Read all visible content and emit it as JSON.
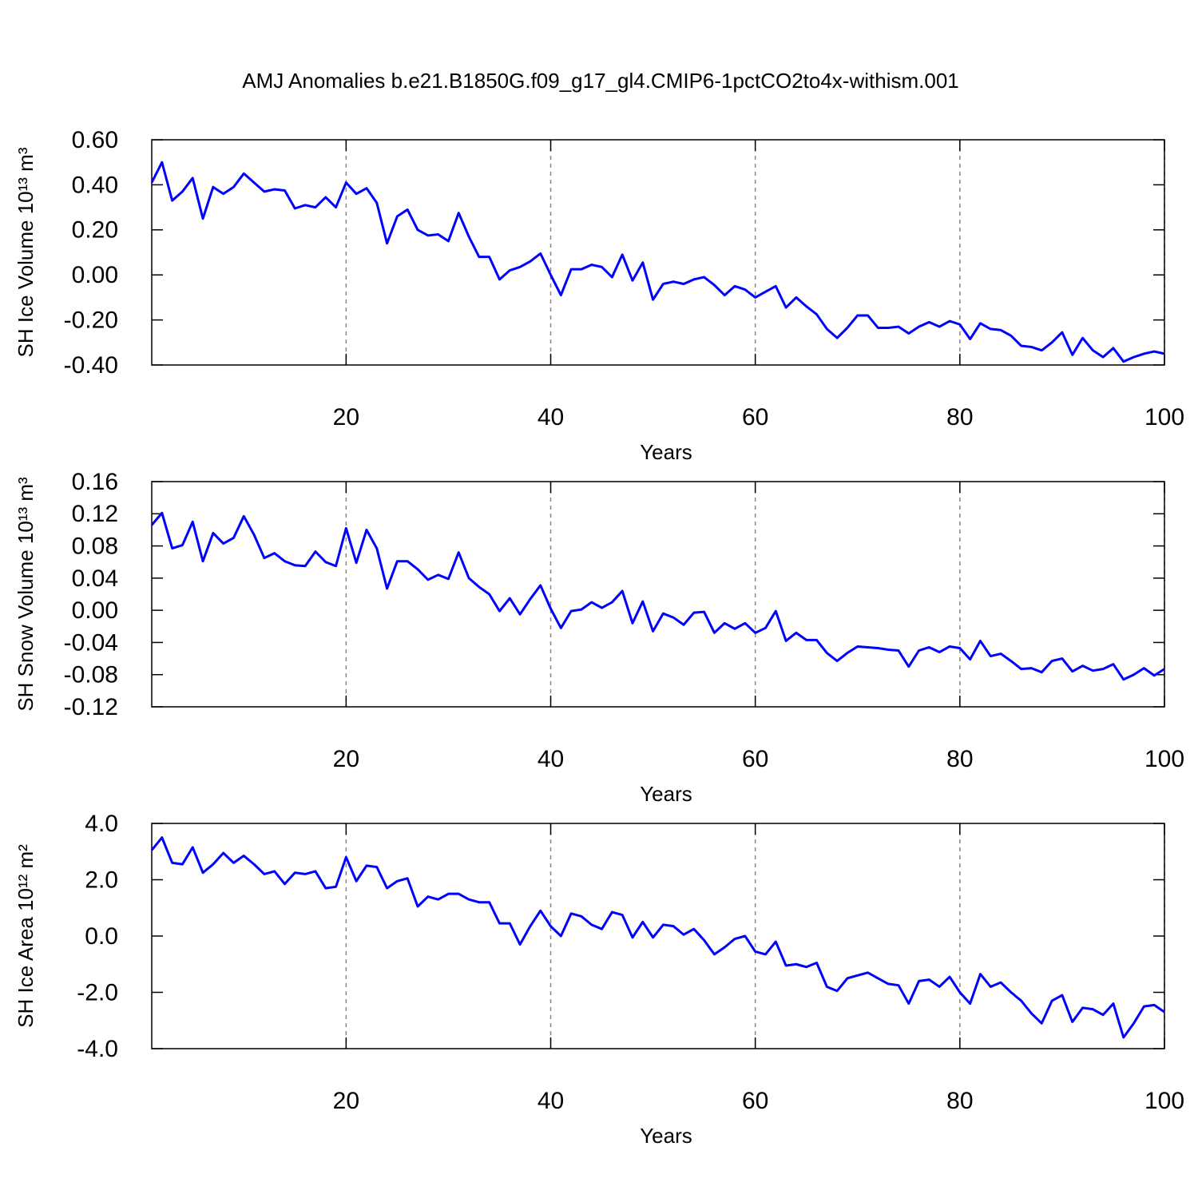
{
  "chart_data": [
    {
      "type": "line",
      "title": "AMJ Anomalies b.e21.B1850G.f09_g17_gl4.CMIP6-1pctCO2to4x-withism.001",
      "xlabel": "Years",
      "ylabel": "SH Ice Volume 10¹³ m³",
      "x": [
        1,
        2,
        3,
        4,
        5,
        6,
        7,
        8,
        9,
        10,
        11,
        12,
        13,
        14,
        15,
        16,
        17,
        18,
        19,
        20,
        21,
        22,
        23,
        24,
        25,
        26,
        27,
        28,
        29,
        30,
        31,
        32,
        33,
        34,
        35,
        36,
        37,
        38,
        39,
        40,
        41,
        42,
        43,
        44,
        45,
        46,
        47,
        48,
        49,
        50,
        51,
        52,
        53,
        54,
        55,
        56,
        57,
        58,
        59,
        60,
        61,
        62,
        63,
        64,
        65,
        66,
        67,
        68,
        69,
        70,
        71,
        72,
        73,
        74,
        75,
        76,
        77,
        78,
        79,
        80,
        81,
        82,
        83,
        84,
        85,
        86,
        87,
        88,
        89,
        90,
        91,
        92,
        93,
        94,
        95,
        96,
        97,
        98,
        99,
        100
      ],
      "series": [
        {
          "color": "#0000ff",
          "values": [
            0.41,
            0.5,
            0.33,
            0.37,
            0.43,
            0.25,
            0.39,
            0.36,
            0.39,
            0.45,
            0.41,
            0.37,
            0.38,
            0.375,
            0.295,
            0.31,
            0.3,
            0.345,
            0.3,
            0.41,
            0.36,
            0.385,
            0.32,
            0.14,
            0.26,
            0.29,
            0.2,
            0.175,
            0.18,
            0.15,
            0.275,
            0.17,
            0.08,
            0.08,
            -0.02,
            0.02,
            0.035,
            0.06,
            0.095,
            0.0,
            -0.09,
            0.025,
            0.025,
            0.045,
            0.035,
            -0.01,
            0.09,
            -0.025,
            0.055,
            -0.11,
            -0.04,
            -0.03,
            -0.04,
            -0.02,
            -0.01,
            -0.045,
            -0.09,
            -0.05,
            -0.065,
            -0.1,
            -0.075,
            -0.05,
            -0.145,
            -0.1,
            -0.14,
            -0.175,
            -0.24,
            -0.28,
            -0.235,
            -0.18,
            -0.18,
            -0.235,
            -0.235,
            -0.23,
            -0.26,
            -0.23,
            -0.21,
            -0.23,
            -0.205,
            -0.22,
            -0.285,
            -0.215,
            -0.24,
            -0.245,
            -0.27,
            -0.315,
            -0.32,
            -0.335,
            -0.3,
            -0.255,
            -0.355,
            -0.28,
            -0.335,
            -0.365,
            -0.325,
            -0.385,
            -0.365,
            -0.35,
            -0.34,
            -0.35
          ]
        }
      ],
      "xlim": [
        1,
        100
      ],
      "xticks": [
        20,
        40,
        60,
        80,
        100
      ],
      "ylim": [
        -0.4,
        0.6
      ],
      "yticks": [
        {
          "value": -0.4,
          "label": "-0.40"
        },
        {
          "value": -0.2,
          "label": "-0.20"
        },
        {
          "value": 0,
          "label": "0.00"
        },
        {
          "value": 0.2,
          "label": "0.20"
        },
        {
          "value": 0.4,
          "label": "0.40"
        },
        {
          "value": 0.6,
          "label": "0.60"
        }
      ],
      "grid": "x-dashed"
    },
    {
      "type": "line",
      "xlabel": "Years",
      "ylabel": "SH Snow Volume 10¹³ m³",
      "x": [
        1,
        2,
        3,
        4,
        5,
        6,
        7,
        8,
        9,
        10,
        11,
        12,
        13,
        14,
        15,
        16,
        17,
        18,
        19,
        20,
        21,
        22,
        23,
        24,
        25,
        26,
        27,
        28,
        29,
        30,
        31,
        32,
        33,
        34,
        35,
        36,
        37,
        38,
        39,
        40,
        41,
        42,
        43,
        44,
        45,
        46,
        47,
        48,
        49,
        50,
        51,
        52,
        53,
        54,
        55,
        56,
        57,
        58,
        59,
        60,
        61,
        62,
        63,
        64,
        65,
        66,
        67,
        68,
        69,
        70,
        71,
        72,
        73,
        74,
        75,
        76,
        77,
        78,
        79,
        80,
        81,
        82,
        83,
        84,
        85,
        86,
        87,
        88,
        89,
        90,
        91,
        92,
        93,
        94,
        95,
        96,
        97,
        98,
        99,
        100
      ],
      "series": [
        {
          "color": "#0000ff",
          "values": [
            0.106,
            0.121,
            0.077,
            0.081,
            0.11,
            0.061,
            0.096,
            0.083,
            0.09,
            0.117,
            0.094,
            0.065,
            0.071,
            0.061,
            0.056,
            0.055,
            0.073,
            0.06,
            0.055,
            0.102,
            0.059,
            0.1,
            0.077,
            0.027,
            0.061,
            0.061,
            0.051,
            0.038,
            0.044,
            0.039,
            0.072,
            0.04,
            0.029,
            0.02,
            -0.001,
            0.015,
            -0.005,
            0.014,
            0.031,
            0.002,
            -0.022,
            -0.001,
            0.001,
            0.01,
            0.003,
            0.01,
            0.024,
            -0.016,
            0.011,
            -0.026,
            -0.004,
            -0.009,
            -0.018,
            -0.003,
            -0.002,
            -0.028,
            -0.016,
            -0.023,
            -0.016,
            -0.028,
            -0.022,
            -0.001,
            -0.038,
            -0.028,
            -0.037,
            -0.037,
            -0.053,
            -0.063,
            -0.053,
            -0.045,
            -0.046,
            -0.047,
            -0.049,
            -0.05,
            -0.07,
            -0.05,
            -0.046,
            -0.052,
            -0.045,
            -0.047,
            -0.061,
            -0.038,
            -0.057,
            -0.054,
            -0.063,
            -0.073,
            -0.072,
            -0.077,
            -0.063,
            -0.06,
            -0.076,
            -0.069,
            -0.075,
            -0.073,
            -0.067,
            -0.086,
            -0.08,
            -0.072,
            -0.081,
            -0.073
          ]
        }
      ],
      "xlim": [
        1,
        100
      ],
      "xticks": [
        20,
        40,
        60,
        80,
        100
      ],
      "ylim": [
        -0.12,
        0.16
      ],
      "yticks": [
        -0.12,
        -0.08,
        -0.04,
        {
          "value": 0,
          "label": "0.00"
        },
        0.04,
        0.08,
        0.12,
        0.16
      ],
      "grid": "x-dashed"
    },
    {
      "type": "line",
      "xlabel": "Years",
      "ylabel": "SH Ice Area 10¹² m²",
      "x": [
        1,
        2,
        3,
        4,
        5,
        6,
        7,
        8,
        9,
        10,
        11,
        12,
        13,
        14,
        15,
        16,
        17,
        18,
        19,
        20,
        21,
        22,
        23,
        24,
        25,
        26,
        27,
        28,
        29,
        30,
        31,
        32,
        33,
        34,
        35,
        36,
        37,
        38,
        39,
        40,
        41,
        42,
        43,
        44,
        45,
        46,
        47,
        48,
        49,
        50,
        51,
        52,
        53,
        54,
        55,
        56,
        57,
        58,
        59,
        60,
        61,
        62,
        63,
        64,
        65,
        66,
        67,
        68,
        69,
        70,
        71,
        72,
        73,
        74,
        75,
        76,
        77,
        78,
        79,
        80,
        81,
        82,
        83,
        84,
        85,
        86,
        87,
        88,
        89,
        90,
        91,
        92,
        93,
        94,
        95,
        96,
        97,
        98,
        99,
        100
      ],
      "series": [
        {
          "color": "#0000ff",
          "values": [
            3.05,
            3.5,
            2.6,
            2.55,
            3.15,
            2.25,
            2.55,
            2.95,
            2.6,
            2.85,
            2.55,
            2.2,
            2.3,
            1.85,
            2.25,
            2.2,
            2.3,
            1.7,
            1.75,
            2.8,
            1.95,
            2.5,
            2.45,
            1.7,
            1.95,
            2.05,
            1.05,
            1.4,
            1.3,
            1.5,
            1.5,
            1.3,
            1.2,
            1.2,
            0.45,
            0.45,
            -0.3,
            0.35,
            0.9,
            0.35,
            0.0,
            0.8,
            0.7,
            0.4,
            0.25,
            0.85,
            0.75,
            -0.05,
            0.5,
            -0.05,
            0.4,
            0.35,
            0.05,
            0.25,
            -0.15,
            -0.65,
            -0.4,
            -0.1,
            0.0,
            -0.55,
            -0.65,
            -0.2,
            -1.05,
            -1.0,
            -1.1,
            -0.95,
            -1.8,
            -1.95,
            -1.5,
            -1.4,
            -1.3,
            -1.5,
            -1.7,
            -1.75,
            -2.4,
            -1.6,
            -1.55,
            -1.8,
            -1.45,
            -2.0,
            -2.4,
            -1.35,
            -1.8,
            -1.65,
            -2.0,
            -2.3,
            -2.75,
            -3.1,
            -2.3,
            -2.1,
            -3.05,
            -2.55,
            -2.6,
            -2.8,
            -2.4,
            -3.6,
            -3.1,
            -2.5,
            -2.45,
            -2.7
          ]
        }
      ],
      "xlim": [
        1,
        100
      ],
      "xticks": [
        20,
        40,
        60,
        80,
        100
      ],
      "ylim": [
        -4,
        4
      ],
      "yticks": [
        {
          "value": -4,
          "label": "-4.0"
        },
        {
          "value": -2,
          "label": "-2.0"
        },
        {
          "value": 0,
          "label": "0.0"
        },
        {
          "value": 2,
          "label": "2.0"
        },
        {
          "value": 4,
          "label": "4.0"
        }
      ],
      "grid": "x-dashed"
    }
  ]
}
